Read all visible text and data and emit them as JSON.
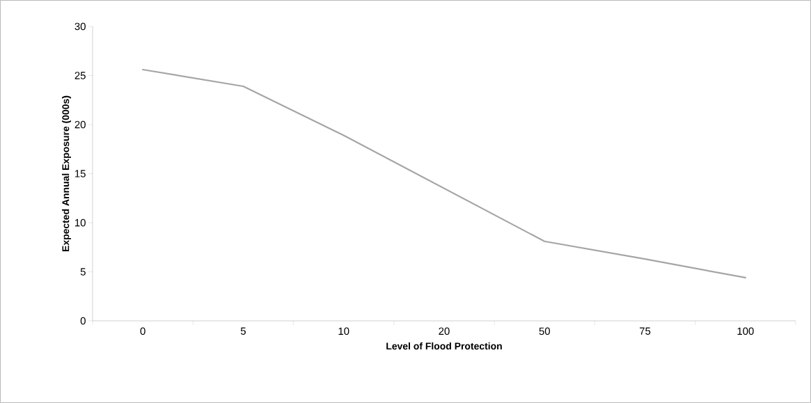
{
  "chart_data": {
    "type": "line",
    "xlabel": "Level of Flood Protection",
    "ylabel": "Expected Annual Exposure (000s)",
    "categories": [
      "0",
      "5",
      "10",
      "20",
      "50",
      "75",
      "100"
    ],
    "series": [
      {
        "color": "#a5a5a5",
        "values": [
          25.6,
          23.9,
          18.9,
          13.5,
          8.1,
          6.3,
          4.4
        ]
      }
    ],
    "ylim": [
      0,
      30
    ],
    "yticks": [
      0,
      5,
      10,
      15,
      20,
      25,
      30
    ],
    "grid": false,
    "marker": "none",
    "line_style": "solid"
  }
}
